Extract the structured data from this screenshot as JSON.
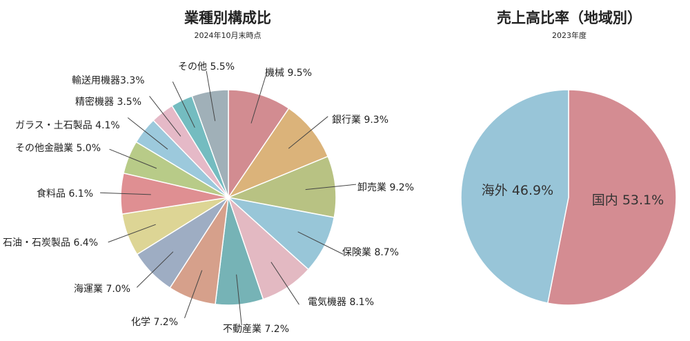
{
  "chart_data": [
    {
      "type": "pie",
      "title": "業種別構成比",
      "subtitle": "2024年10月末時点",
      "slices": [
        {
          "label": "機械 9.5%",
          "value": 9.5,
          "color": "#d28c91"
        },
        {
          "label": "銀行業 9.3%",
          "value": 9.3,
          "color": "#dbb37a"
        },
        {
          "label": "卸売業 9.2%",
          "value": 9.2,
          "color": "#b8c283"
        },
        {
          "label": "保険業 8.7%",
          "value": 8.7,
          "color": "#98c6d8"
        },
        {
          "label": "電気機器 8.1%",
          "value": 8.1,
          "color": "#e3b9c2"
        },
        {
          "label": "不動産業 7.2%",
          "value": 7.2,
          "color": "#76b3b6"
        },
        {
          "label": "化学 7.2%",
          "value": 7.2,
          "color": "#d6a08b"
        },
        {
          "label": "海運業 7.0%",
          "value": 7.0,
          "color": "#9eadc3"
        },
        {
          "label": "石油・石炭製品 6.4%",
          "value": 6.4,
          "color": "#ddd595"
        },
        {
          "label": "食料品 6.1%",
          "value": 6.1,
          "color": "#df8f92"
        },
        {
          "label": "その他金融業 5.0%",
          "value": 5.0,
          "color": "#b8cb88"
        },
        {
          "label": "ガラス・土石製品 4.1%",
          "value": 4.1,
          "color": "#9cc9dc"
        },
        {
          "label": "精密機器 3.5%",
          "value": 3.5,
          "color": "#e5b9c7"
        },
        {
          "label": "輸送用機器3.3%",
          "value": 3.3,
          "color": "#74bcc0"
        },
        {
          "label": "その他 5.5%",
          "value": 5.5,
          "color": "#a0b0b8"
        }
      ]
    },
    {
      "type": "pie",
      "title": "売上高比率（地域別）",
      "subtitle": "2023年度",
      "slices": [
        {
          "label": "国内 53.1%",
          "value": 53.1,
          "color": "#d48c92"
        },
        {
          "label": "海外 46.9%",
          "value": 46.9,
          "color": "#98c5d8"
        }
      ]
    }
  ]
}
